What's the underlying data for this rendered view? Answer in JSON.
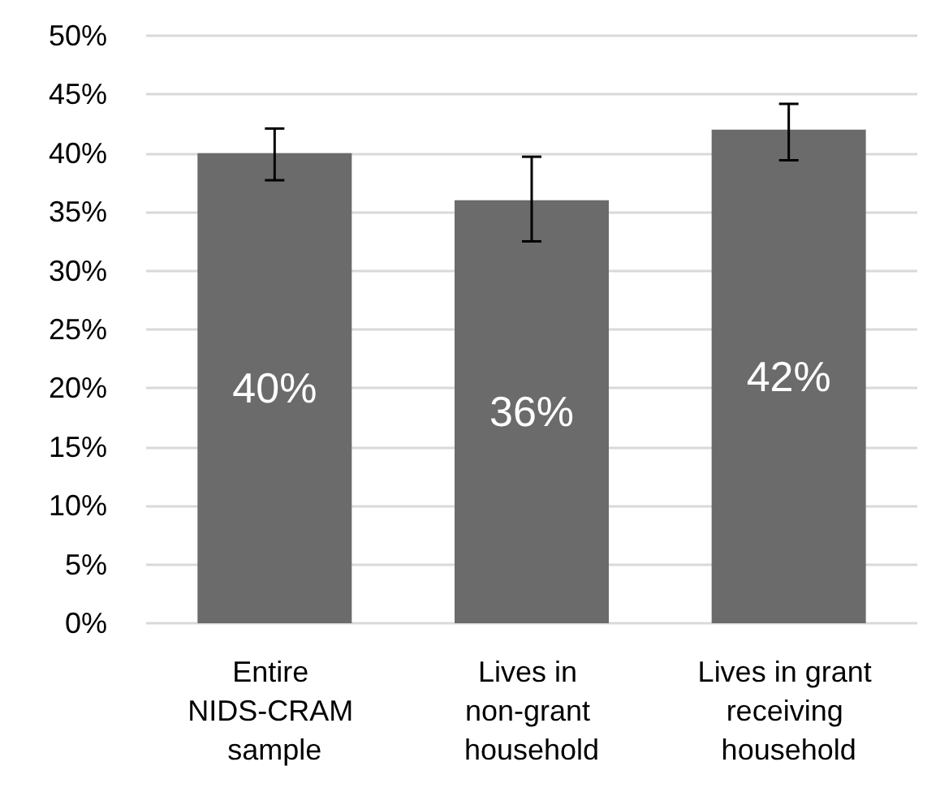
{
  "chart_data": {
    "type": "bar",
    "categories": [
      "Entire NIDS-CRAM sample",
      "Lives in non-grant household",
      "Lives in grant receiving household"
    ],
    "values": [
      40,
      36,
      42
    ],
    "color": "#6b6b6b",
    "value_labels": [
      "40%",
      "36%",
      "42%"
    ],
    "errors": [
      [
        37.7,
        42.1
      ],
      [
        32.5,
        39.7
      ],
      [
        39.4,
        44.2
      ]
    ],
    "ylim": [
      0,
      50
    ],
    "yticks": [
      {
        "value": 0,
        "label": "0%"
      },
      {
        "value": 5,
        "label": "5%"
      },
      {
        "value": 10,
        "label": "10%"
      },
      {
        "value": 15,
        "label": "15%"
      },
      {
        "value": 20,
        "label": "20%"
      },
      {
        "value": 25,
        "label": "25%"
      },
      {
        "value": 30,
        "label": "30%"
      },
      {
        "value": 35,
        "label": "35%"
      },
      {
        "value": 40,
        "label": "40%"
      },
      {
        "value": 45,
        "label": "45%"
      },
      {
        "value": 50,
        "label": "50%"
      }
    ],
    "grid": "y"
  }
}
